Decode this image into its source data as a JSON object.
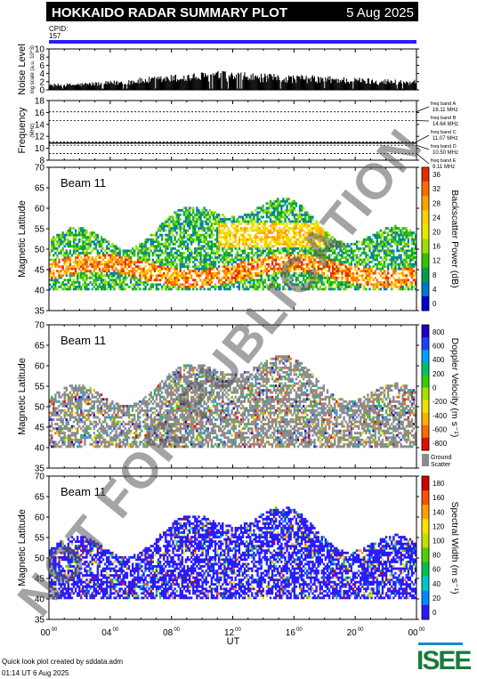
{
  "header": {
    "title": "HOKKAIDO RADAR SUMMARY PLOT",
    "date": "5 Aug 2025",
    "cpid_label": "CPID:",
    "cpid_value": "157"
  },
  "footer": {
    "credit_line1": "Quick look plot created by sddata.adm",
    "credit_line2": "01:14 UT  6 Aug 2025",
    "logo_text": "ISEE",
    "watermark": "NOT FOR PUBLICATION"
  },
  "colors": {
    "cpid_bar": "#2a1bff",
    "ground_scatter": "#8c8c8c",
    "watermark": "rgba(90,90,90,0.55)"
  },
  "chart_data": [
    {
      "type": "bar",
      "name": "noise",
      "ylabel": "Noise Level",
      "ylabel_units": "log scale (a.u. 10^3)",
      "ylim": [
        0,
        10
      ],
      "yticks": [
        "0",
        "2",
        "4",
        "6",
        "8",
        "10"
      ],
      "x": [
        0,
        2,
        4,
        6,
        8,
        10,
        11,
        12,
        13,
        14,
        16,
        18,
        20,
        22,
        24
      ],
      "values": [
        1.2,
        1.4,
        1.8,
        2.4,
        3.0,
        3.5,
        3.8,
        3.6,
        3.4,
        3.2,
        3.0,
        2.8,
        2.5,
        2.2,
        2.0
      ]
    },
    {
      "type": "line",
      "name": "frequency",
      "ylabel": "Frequency",
      "ylabel_units": "(MHz)",
      "ylim": [
        8,
        18
      ],
      "yticks": [
        "8",
        "10",
        "12",
        "14",
        "16",
        "18"
      ],
      "frequency_mhz": [
        10.86,
        11.0
      ],
      "bands": [
        {
          "label": "freq band A",
          "value": "16.11 MHz",
          "mhz": 16.11
        },
        {
          "label": "freq band B",
          "value": "14.64 MHz",
          "mhz": 14.64
        },
        {
          "label": "freq band C",
          "value": "11.07 MHz",
          "mhz": 11.07
        },
        {
          "label": "freq band D",
          "value": "10.50 MHz",
          "mhz": 10.5
        },
        {
          "label": "freq band E",
          "value": "9.11 MHz",
          "mhz": 9.11
        }
      ]
    },
    {
      "type": "heatmap",
      "name": "power",
      "beam": "Beam 11",
      "ylabel": "Magnetic Latitude",
      "ylim": [
        35,
        70
      ],
      "yticks": [
        "35",
        "40",
        "45",
        "50",
        "55",
        "60",
        "65",
        "70"
      ],
      "colorbar_label": "Backscatter Power (dB)",
      "colorbar_ticks": [
        "0",
        "4",
        "8",
        "12",
        "16",
        "20",
        "24",
        "28",
        "32",
        "36"
      ],
      "colorbar_range": [
        0,
        36
      ],
      "band_ut": [
        [
          0,
          24
        ]
      ],
      "band_lat": [
        [
          40,
          47
        ]
      ],
      "echo_region_lat": [
        [
          40,
          63
        ]
      ]
    },
    {
      "type": "heatmap",
      "name": "velocity",
      "beam": "Beam 11",
      "ylabel": "Magnetic Latitude",
      "ylim": [
        35,
        70
      ],
      "yticks": [
        "35",
        "40",
        "45",
        "50",
        "55",
        "60",
        "65",
        "70"
      ],
      "colorbar_label": "Doppler Velocity (m s⁻¹)",
      "colorbar_ticks": [
        "800",
        "600",
        "400",
        "200",
        "0",
        "-200",
        "-400",
        "-600",
        "-800"
      ],
      "colorbar_range": [
        -800,
        800
      ],
      "ground_scatter_label_1": "Ground",
      "ground_scatter_label_2": "Scatter"
    },
    {
      "type": "heatmap",
      "name": "width",
      "beam": "Beam 11",
      "ylabel": "Magnetic Latitude",
      "ylim": [
        35,
        70
      ],
      "yticks": [
        "35",
        "40",
        "45",
        "50",
        "55",
        "60",
        "65",
        "70"
      ],
      "colorbar_label": "Spectral Width (m s⁻¹)",
      "colorbar_ticks": [
        "0",
        "20",
        "40",
        "60",
        "80",
        "100",
        "120",
        "140",
        "160",
        "180"
      ],
      "colorbar_range": [
        0,
        180
      ],
      "xlabel": "UT",
      "xlim": [
        0,
        24
      ],
      "xticks": [
        "00",
        "04",
        "08",
        "12",
        "16",
        "20",
        "00"
      ],
      "xtick_superscript": "00"
    }
  ]
}
